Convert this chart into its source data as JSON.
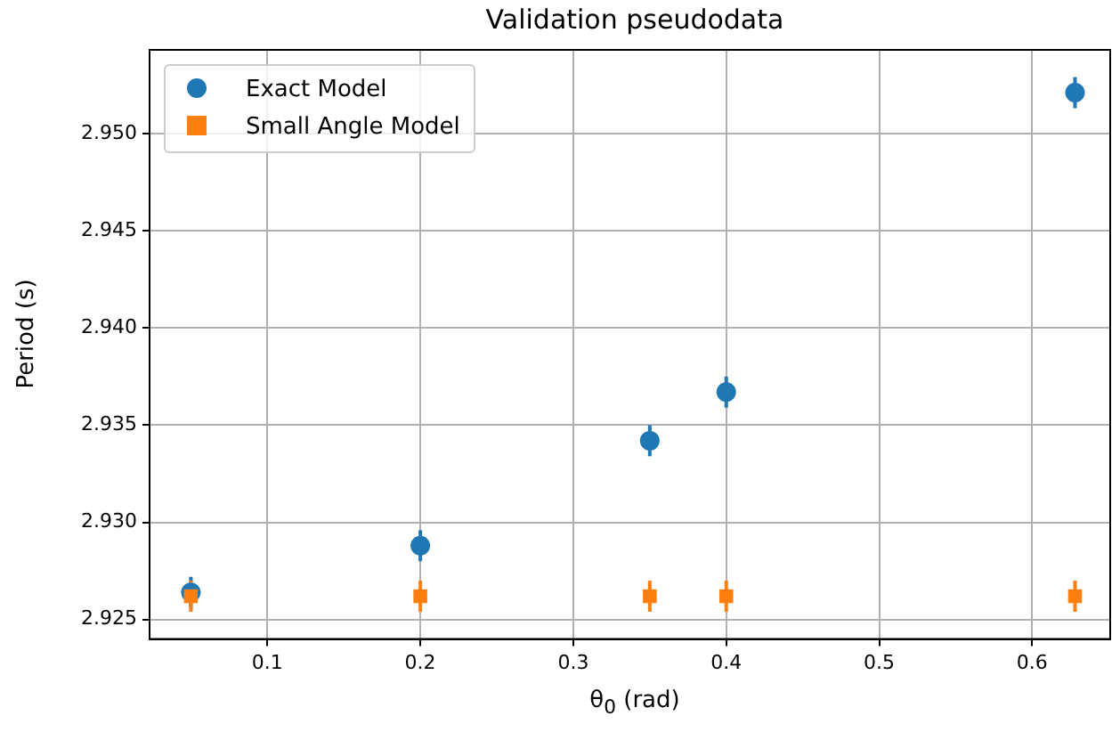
{
  "chart_data": {
    "type": "scatter",
    "title": "Validation pseudodata",
    "xlabel": "θ$_{0}$ (rad)",
    "ylabel": "Period (s)",
    "xlim": [
      0.023,
      0.651
    ],
    "xticks": [
      {
        "value": 0.1,
        "label": "0.1"
      },
      {
        "value": 0.2,
        "label": "0.2"
      },
      {
        "value": 0.3,
        "label": "0.3"
      },
      {
        "value": 0.4,
        "label": "0.4"
      },
      {
        "value": 0.5,
        "label": "0.5"
      },
      {
        "value": 0.6,
        "label": "0.6"
      }
    ],
    "ylim": [
      2.924,
      2.9543
    ],
    "yticks": [
      {
        "value": 2.925,
        "label": "2.925"
      },
      {
        "value": 2.93,
        "label": "2.930"
      },
      {
        "value": 2.935,
        "label": "2.935"
      },
      {
        "value": 2.94,
        "label": "2.940"
      },
      {
        "value": 2.945,
        "label": "2.945"
      },
      {
        "value": 2.95,
        "label": "2.950"
      }
    ],
    "grid": true,
    "legend": "top left",
    "series": [
      {
        "name": "Exact Model",
        "color": "#1f77b4",
        "marker": "circle",
        "x": [
          0.05,
          0.2,
          0.35,
          0.4,
          0.628
        ],
        "values": [
          2.9264,
          2.9288,
          2.9342,
          2.9367,
          2.9521
        ],
        "errors": [
          0.0008,
          0.0008,
          0.0008,
          0.0008,
          0.0008
        ]
      },
      {
        "name": "Small Angle Model",
        "color": "#ff7f0e",
        "marker": "square",
        "x": [
          0.05,
          0.2,
          0.35,
          0.4,
          0.628
        ],
        "values": [
          2.9262,
          2.9262,
          2.9262,
          2.9262,
          2.9262
        ],
        "errors": [
          0.0008,
          0.0008,
          0.0008,
          0.0008,
          0.0008
        ]
      }
    ]
  }
}
